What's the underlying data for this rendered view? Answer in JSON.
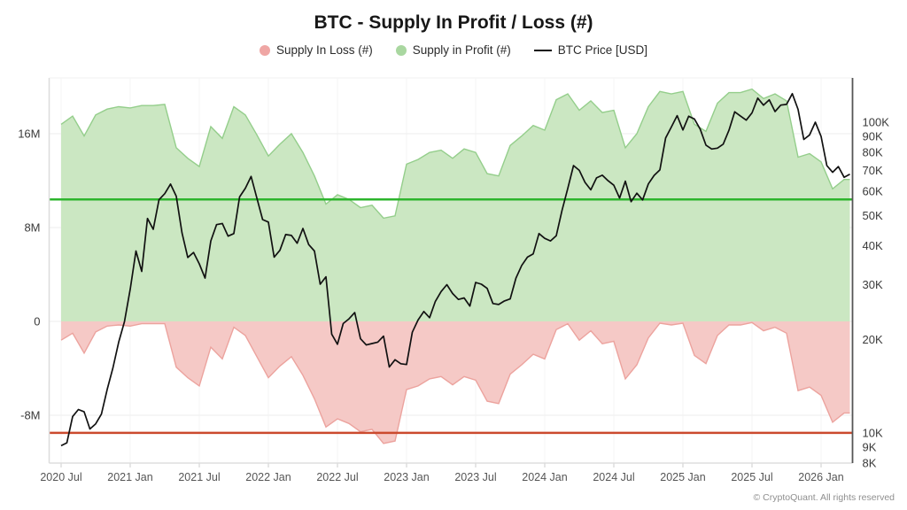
{
  "title": "BTC - Supply In Profit / Loss (#)",
  "watermark": "CryptoQuant",
  "footer": "© CryptoQuant. All rights reserved",
  "legend": [
    {
      "label": "Supply In Loss (#)",
      "marker": "circle",
      "color": "#efa6a4"
    },
    {
      "label": "Supply in Profit (#)",
      "marker": "circle",
      "color": "#a9d7a0"
    },
    {
      "label": "BTC Price [USD]",
      "marker": "line",
      "color": "#111111"
    }
  ],
  "colors": {
    "profit_fill": "#cbe7c2",
    "profit_edge": "#94ce8b",
    "loss_fill": "#f5c9c6",
    "loss_edge": "#eca39e",
    "price_line": "#111111",
    "green_refline": "#2db52d",
    "red_refline": "#cb4a2e",
    "grid": "#ededed",
    "axis_left": "#dddddd",
    "axis_right": "#555555",
    "tick_text": "#3a3a3a",
    "x_text": "#555555",
    "watermark": "#a2b1a2"
  },
  "chart_data": {
    "type": "area",
    "title": "BTC - Supply In Profit / Loss (#)",
    "x_unit": "months since 2020-07-01",
    "x_span_months": 68.5,
    "x_ticks": {
      "positions": [
        0,
        6,
        12,
        18,
        24,
        30,
        36,
        42,
        48,
        54,
        60,
        66
      ],
      "labels": [
        "2020 Jul",
        "2021 Jan",
        "2021 Jul",
        "2022 Jan",
        "2022 Jul",
        "2023 Jan",
        "2023 Jul",
        "2024 Jan",
        "2024 Jul",
        "2025 Jan",
        "2025 Jul",
        "2026 Jan"
      ]
    },
    "left_axis": {
      "title": "Supply In Profit / Loss (#)",
      "scale": "linear",
      "tick_values_millions": [
        16,
        8,
        0,
        -8
      ],
      "tick_labels": [
        "16M",
        "8M",
        "0",
        "-8M"
      ],
      "range_millions": [
        -12.1,
        20.8
      ]
    },
    "right_axis": {
      "title": "BTC Price [USD]",
      "scale": "log",
      "tick_values": [
        100000,
        90000,
        80000,
        70000,
        60000,
        50000,
        40000,
        30000,
        20000,
        10000,
        9000,
        8000
      ],
      "tick_labels": [
        "100K",
        "90K",
        "80K",
        "70K",
        "60K",
        "50K",
        "40K",
        "30K",
        "20K",
        "10K",
        "9K",
        "8K"
      ]
    },
    "series": [
      {
        "name": "Supply in Profit (#)",
        "type": "area",
        "axis": "left",
        "baseline": 0,
        "sign": 1,
        "start_month": 0,
        "step_months": 1,
        "values_millions": [
          16.8,
          17.5,
          15.8,
          17.6,
          18.1,
          18.3,
          18.2,
          18.4,
          18.4,
          18.5,
          14.8,
          13.9,
          13.2,
          16.6,
          15.6,
          18.3,
          17.6,
          15.9,
          14.1,
          15.1,
          16.0,
          14.4,
          12.4,
          10.0,
          10.8,
          10.4,
          9.7,
          9.9,
          8.8,
          9.0,
          13.4,
          13.8,
          14.4,
          14.6,
          13.9,
          14.7,
          14.4,
          12.6,
          12.4,
          15.0,
          15.8,
          16.7,
          16.3,
          18.9,
          19.4,
          18.0,
          18.8,
          17.8,
          18.0,
          14.8,
          16.0,
          18.3,
          19.6,
          19.4,
          19.6,
          16.8,
          16.2,
          18.6,
          19.5,
          19.5,
          19.8,
          19.0,
          19.4,
          18.8,
          14.0,
          14.3,
          13.6,
          11.3,
          12.1
        ]
      },
      {
        "name": "Supply In Loss (#)",
        "type": "area",
        "axis": "left",
        "baseline": 0,
        "sign": -1,
        "start_month": 0,
        "step_months": 1,
        "values_millions": [
          1.6,
          1.0,
          2.7,
          0.9,
          0.4,
          0.3,
          0.4,
          0.2,
          0.2,
          0.2,
          3.9,
          4.8,
          5.5,
          2.2,
          3.2,
          0.5,
          1.2,
          3.0,
          4.8,
          3.8,
          3.0,
          4.6,
          6.6,
          9.0,
          8.3,
          8.7,
          9.4,
          9.2,
          10.4,
          10.2,
          5.8,
          5.5,
          4.9,
          4.7,
          5.4,
          4.7,
          5.0,
          6.8,
          7.0,
          4.5,
          3.7,
          2.8,
          3.2,
          0.7,
          0.2,
          1.6,
          0.8,
          1.9,
          1.7,
          4.9,
          3.7,
          1.4,
          0.15,
          0.3,
          0.15,
          2.9,
          3.6,
          1.2,
          0.3,
          0.3,
          0.1,
          0.8,
          0.5,
          1.0,
          5.9,
          5.6,
          6.3,
          8.6,
          7.8
        ]
      },
      {
        "name": "BTC Price [USD]",
        "type": "line",
        "axis": "right",
        "start_month": 0,
        "step_months": 0.5,
        "values_usd_thousands": [
          9.1,
          9.3,
          11.3,
          11.9,
          11.7,
          10.3,
          10.7,
          11.5,
          13.8,
          16.2,
          19.6,
          22.8,
          29.0,
          38.5,
          33.1,
          49.0,
          45.2,
          56.3,
          58.9,
          63.2,
          57.8,
          44.0,
          36.7,
          38.1,
          35.0,
          31.5,
          41.5,
          46.8,
          47.2,
          43.0,
          43.8,
          57.5,
          61.3,
          66.9,
          57.0,
          48.6,
          47.7,
          36.8,
          38.7,
          43.5,
          43.2,
          40.8,
          45.5,
          40.4,
          38.5,
          30.1,
          31.8,
          20.8,
          19.3,
          22.5,
          23.3,
          24.4,
          20.1,
          19.2,
          19.4,
          19.6,
          20.5,
          16.3,
          17.2,
          16.7,
          16.6,
          21.1,
          23.1,
          24.6,
          23.5,
          26.5,
          28.5,
          30.0,
          28.1,
          26.9,
          27.2,
          25.6,
          30.5,
          30.1,
          29.2,
          26.1,
          25.9,
          26.6,
          27.0,
          31.5,
          34.6,
          36.8,
          37.7,
          43.8,
          42.3,
          41.5,
          43.1,
          52.0,
          61.2,
          72.5,
          70.0,
          64.0,
          60.6,
          66.2,
          67.5,
          64.8,
          62.7,
          57.0,
          64.6,
          55.5,
          59.1,
          56.2,
          63.3,
          67.4,
          70.2,
          89.0,
          96.5,
          105.0,
          94.4,
          104.5,
          102.4,
          95.0,
          84.4,
          82.0,
          82.5,
          85.0,
          94.2,
          108.0,
          104.6,
          101.5,
          107.1,
          119.5,
          113.4,
          118.0,
          108.2,
          113.5,
          114.1,
          123.5,
          110.0,
          88.0,
          91.0,
          100.0,
          90.0,
          72.5,
          69.0,
          72.0,
          66.5,
          68.0
        ]
      }
    ],
    "reference_lines": [
      {
        "name": "green-horizontal-line",
        "axis": "left",
        "value_millions": 10.4,
        "color": "#2db52d",
        "width": 2.5
      },
      {
        "name": "red-horizontal-line",
        "axis": "left",
        "value_millions": -9.5,
        "color": "#cb4a2e",
        "width": 2.5
      }
    ],
    "grid": true,
    "legend_position": "top"
  }
}
